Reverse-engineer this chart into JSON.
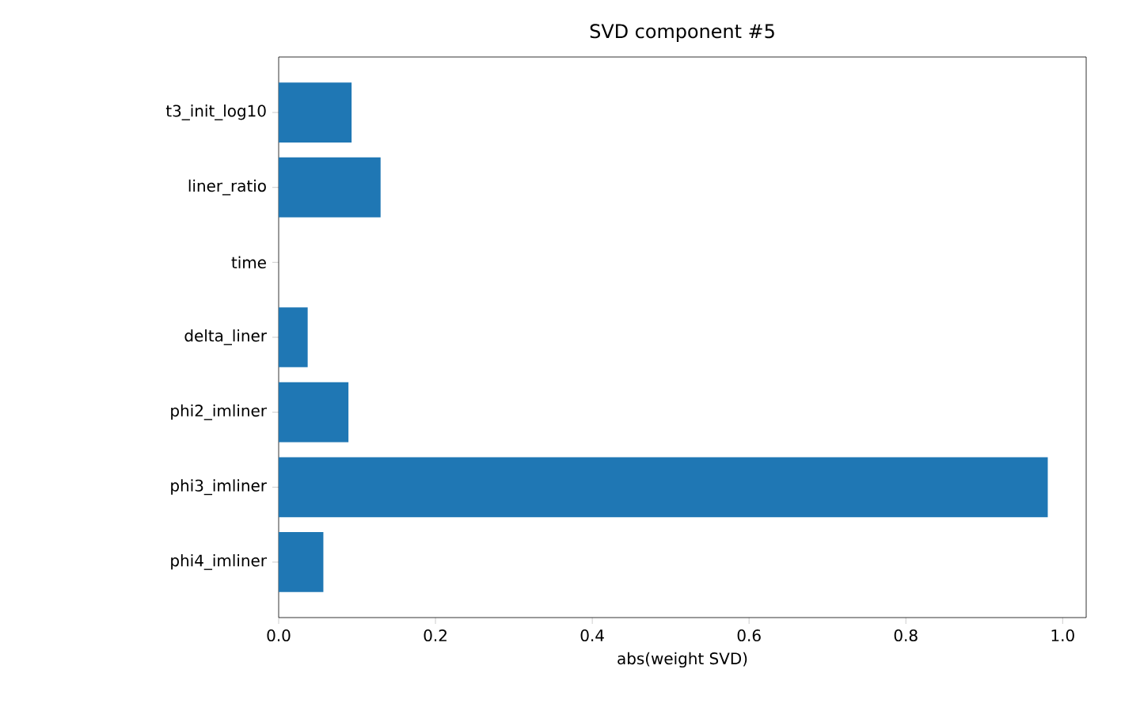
{
  "chart_data": {
    "type": "bar",
    "orientation": "horizontal",
    "title": "SVD component #5",
    "xlabel": "abs(weight SVD)",
    "categories": [
      "t3_init_log10",
      "liner_ratio",
      "time",
      "delta_liner",
      "phi2_imliner",
      "phi3_imliner",
      "phi4_imliner"
    ],
    "values": [
      0.093,
      0.13,
      0.0,
      0.037,
      0.089,
      0.981,
      0.057
    ],
    "color": "#1f77b4",
    "xlim": [
      0,
      1.03
    ],
    "xticks": [
      {
        "value": 0,
        "label": "0.0"
      },
      0.2,
      0.4,
      0.6,
      0.8,
      {
        "value": 1.0,
        "label": "1.0"
      }
    ]
  }
}
